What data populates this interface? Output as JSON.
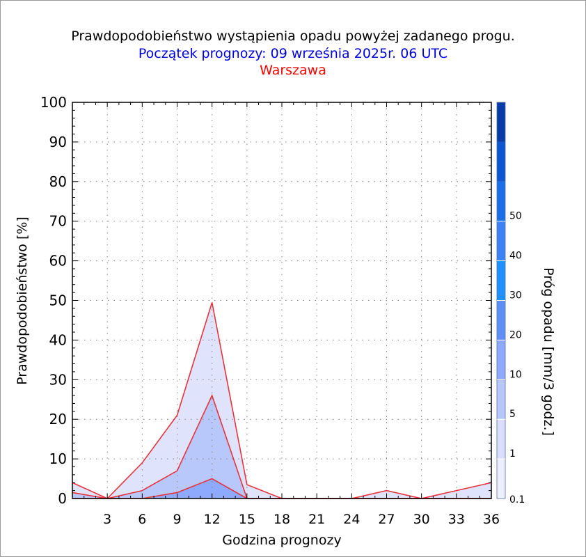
{
  "header": {
    "title": "Prawdopodobieństwo wystąpienia opadu powyżej zadanego progu.",
    "subtitle": "Początek prognozy: 09 września 2025r. 06 UTC",
    "location": "Warszawa"
  },
  "colors": {
    "subtitle": "#0000dd",
    "location": "#ff0000",
    "series_line": "#e8323c",
    "frame": "#000000"
  },
  "chart_data": {
    "type": "area",
    "title": "Prawdopodobieństwo wystąpienia opadu powyżej zadanego progu.",
    "xlabel": "Godzina prognozy",
    "ylabel": "Prawdopodobieństwo [%]",
    "xlim": [
      0,
      36
    ],
    "ylim": [
      0,
      100
    ],
    "x": [
      0,
      3,
      6,
      9,
      12,
      15,
      18,
      21,
      24,
      27,
      30,
      33,
      36
    ],
    "x_ticks": [
      3,
      6,
      9,
      12,
      15,
      18,
      21,
      24,
      27,
      30,
      33,
      36
    ],
    "y_ticks": [
      0,
      10,
      20,
      30,
      40,
      50,
      60,
      70,
      80,
      90,
      100
    ],
    "grid": true,
    "series": [
      {
        "name": "0.1",
        "color": "#dfe4fc",
        "values": [
          4,
          0,
          9,
          21,
          49.5,
          3.5,
          0,
          0,
          0,
          2,
          0,
          2,
          4
        ]
      },
      {
        "name": "1",
        "color": "#b8c8fb",
        "values": [
          1.5,
          0,
          2,
          7,
          26,
          0,
          0,
          0,
          0,
          0,
          0,
          0,
          0
        ]
      },
      {
        "name": "5",
        "color": "#8eaafc",
        "values": [
          0,
          0,
          0,
          1.5,
          5,
          0,
          0,
          0,
          0,
          0,
          0,
          0,
          0
        ]
      }
    ],
    "colorbar": {
      "label": "Próg opadu [mm/3 godz.]",
      "ticks": [
        "0.1",
        "1",
        "5",
        "10",
        "20",
        "30",
        "40",
        "50"
      ],
      "colors": [
        "#eceffd",
        "#d8defb",
        "#b8c8fb",
        "#8eaafc",
        "#5f90f5",
        "#1e90ff",
        "#3a82f5",
        "#1c6ee6",
        "#0c56cf",
        "#083ca8"
      ]
    }
  }
}
